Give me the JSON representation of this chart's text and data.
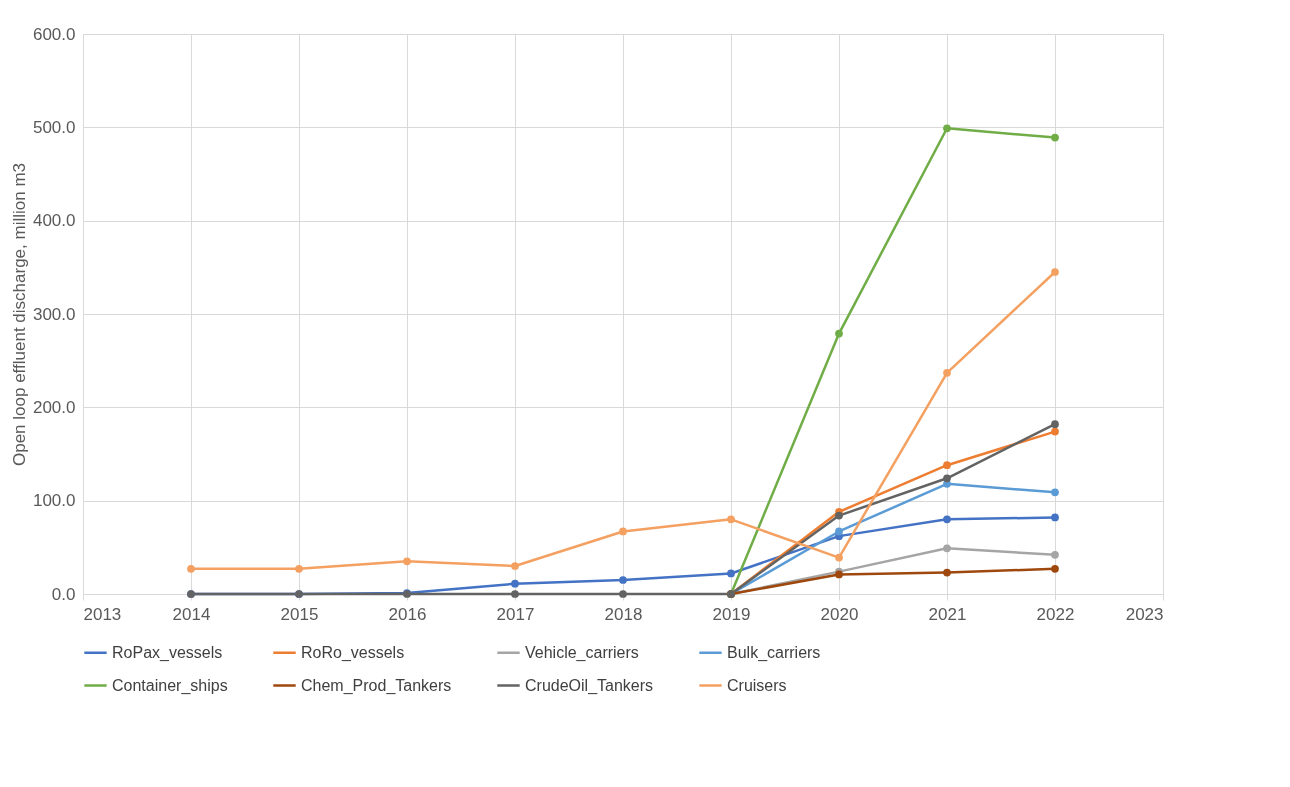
{
  "chart_data": {
    "type": "line",
    "ylabel": "Open loop effluent discharge, million m3",
    "x": [
      2014,
      2015,
      2016,
      2017,
      2018,
      2019,
      2020,
      2021,
      2022
    ],
    "xlim": [
      2013,
      2023
    ],
    "xticks": [
      2013,
      2014,
      2015,
      2016,
      2017,
      2018,
      2019,
      2020,
      2021,
      2022,
      2023
    ],
    "ylim": [
      0,
      600
    ],
    "yticks": [
      {
        "value": 0,
        "label": "0.0"
      },
      {
        "value": 100,
        "label": "100.0"
      },
      {
        "value": 200,
        "label": "200.0"
      },
      {
        "value": 300,
        "label": "300.0"
      },
      {
        "value": 400,
        "label": "400.0"
      },
      {
        "value": 500,
        "label": "500.0"
      },
      {
        "value": 600,
        "label": "600.0"
      }
    ],
    "grid": true,
    "legend": "bottom",
    "marker": "circle",
    "line_style": "solid",
    "series": [
      {
        "name": "RoPax_vessels",
        "color": "#4472c4",
        "values": [
          0,
          0,
          1,
          11,
          15,
          22,
          62,
          80,
          82
        ]
      },
      {
        "name": "RoRo_vessels",
        "color": "#ed7d31",
        "values": [
          null,
          null,
          null,
          null,
          null,
          0,
          88,
          138,
          174
        ]
      },
      {
        "name": "Vehicle_carriers",
        "color": "#a5a5a5",
        "values": [
          null,
          null,
          null,
          null,
          null,
          0,
          24,
          49,
          42
        ]
      },
      {
        "name": "Bulk_carriers",
        "color": "#5b9bd5",
        "values": [
          null,
          null,
          null,
          null,
          null,
          0,
          67,
          118,
          109
        ]
      },
      {
        "name": "Container_ships",
        "color": "#70ad47",
        "values": [
          null,
          null,
          null,
          null,
          null,
          0,
          279,
          499,
          489
        ]
      },
      {
        "name": "Chem_Prod_Tankers",
        "color": "#9e480e",
        "values": [
          null,
          null,
          null,
          null,
          null,
          0,
          21,
          23,
          27
        ]
      },
      {
        "name": "CrudeOil_Tankers",
        "color": "#636363",
        "values": [
          0,
          0,
          0,
          0,
          0,
          0,
          84,
          124,
          182
        ]
      },
      {
        "name": "Cruisers",
        "color": "#f4a060",
        "values": [
          27,
          27,
          35,
          30,
          67,
          80,
          39,
          237,
          345
        ]
      }
    ]
  }
}
